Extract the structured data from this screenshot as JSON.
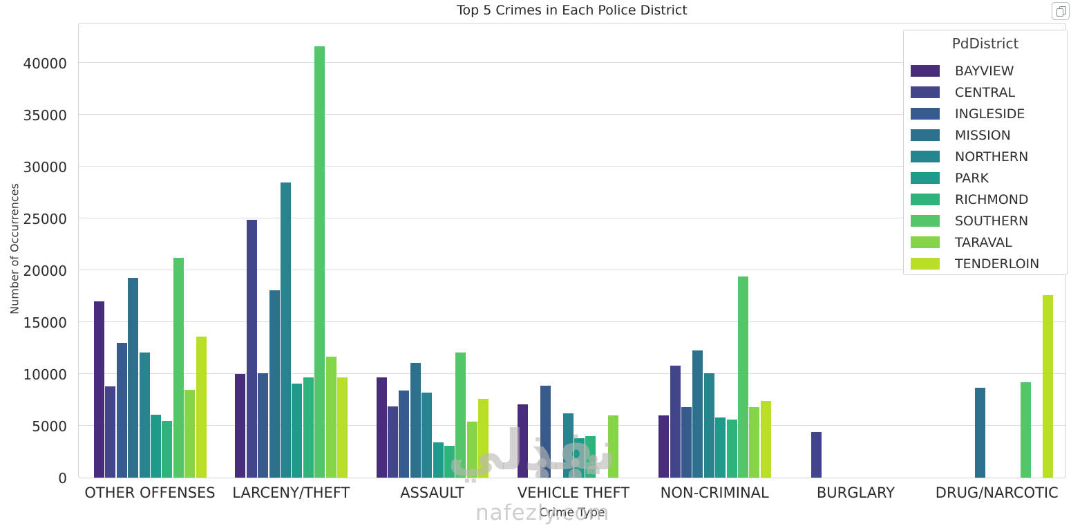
{
  "page": {
    "watermark": {
      "logo_text": "نفذلي",
      "site_text": "nafezly.com"
    }
  },
  "controls": {
    "copy_button_icon": "copy-icon"
  },
  "chart_data": {
    "type": "bar",
    "title": "Top 5 Crimes in Each Police District",
    "xlabel": "Crime Type",
    "ylabel": "Number of Occurrences",
    "categories": [
      "OTHER OFFENSES",
      "LARCENY/THEFT",
      "ASSAULT",
      "VEHICLE THEFT",
      "NON-CRIMINAL",
      "BURGLARY",
      "DRUG/NARCOTIC"
    ],
    "yticks": [
      0,
      5000,
      10000,
      15000,
      20000,
      25000,
      30000,
      35000,
      40000
    ],
    "ylim": [
      0,
      43900
    ],
    "grid": "horizontal",
    "legend_title": "PdDistrict",
    "legend_position": "upper-right",
    "series": [
      {
        "name": "BAYVIEW",
        "color": "#472d7b",
        "values": [
          17000,
          10000,
          9700,
          7100,
          6000,
          null,
          null
        ]
      },
      {
        "name": "CENTRAL",
        "color": "#424589",
        "values": [
          8800,
          24900,
          6900,
          null,
          10800,
          4400,
          null
        ]
      },
      {
        "name": "INGLESIDE",
        "color": "#375a8c",
        "values": [
          13000,
          10100,
          8400,
          8900,
          6800,
          null,
          null
        ]
      },
      {
        "name": "MISSION",
        "color": "#2d708e",
        "values": [
          19300,
          18100,
          11100,
          null,
          12300,
          null,
          8700
        ]
      },
      {
        "name": "NORTHERN",
        "color": "#25848e",
        "values": [
          12100,
          28500,
          8200,
          6200,
          10100,
          null,
          null
        ]
      },
      {
        "name": "PARK",
        "color": "#1f998a",
        "values": [
          6100,
          9100,
          3400,
          3800,
          5800,
          null,
          null
        ]
      },
      {
        "name": "RICHMOND",
        "color": "#2eb37c",
        "values": [
          5500,
          9700,
          3100,
          4000,
          5600,
          null,
          null
        ]
      },
      {
        "name": "SOUTHERN",
        "color": "#54c568",
        "values": [
          21200,
          41600,
          12100,
          null,
          19400,
          null,
          9200
        ]
      },
      {
        "name": "TARAVAL",
        "color": "#86d549",
        "values": [
          8500,
          11700,
          5400,
          6000,
          6800,
          null,
          null
        ]
      },
      {
        "name": "TENDERLOIN",
        "color": "#b9de28",
        "values": [
          13600,
          9700,
          7600,
          null,
          7400,
          null,
          17600
        ]
      }
    ]
  }
}
